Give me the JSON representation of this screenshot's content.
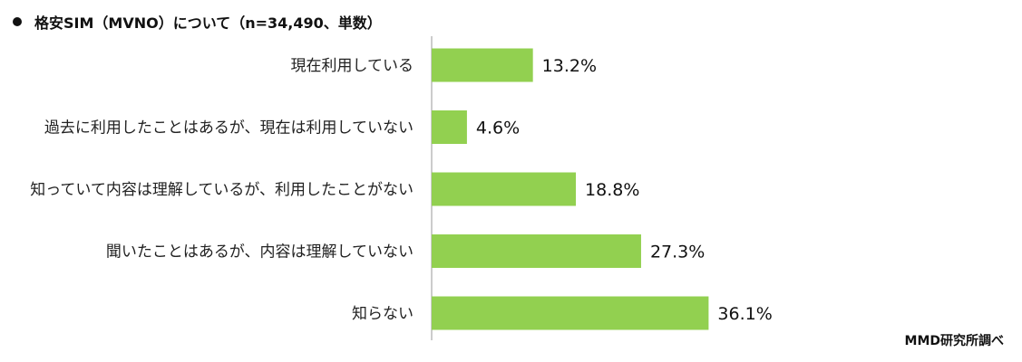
{
  "title": "格安SIM（MVNO）について（n=34,490、単数）",
  "source": "MMD研究所調べ",
  "colors": {
    "bar": "#92d050",
    "axis": "#999999"
  },
  "chart_data": {
    "type": "bar",
    "orientation": "horizontal",
    "title": "格安SIM（MVNO）について（n=34,490、単数）",
    "categories": [
      "現在利用している",
      "過去に利用したことはあるが、現在は利用していない",
      "知っていて内容は理解しているが、利用したことがない",
      "聞いたことはあるが、内容は理解していない",
      "知らない"
    ],
    "values": [
      13.2,
      4.6,
      18.8,
      27.3,
      36.1
    ],
    "value_labels": [
      "13.2%",
      "4.6%",
      "18.8%",
      "27.3%",
      "36.1%"
    ],
    "unit": "%",
    "xlim": [
      0,
      100
    ],
    "grid": false,
    "legend": "none"
  }
}
